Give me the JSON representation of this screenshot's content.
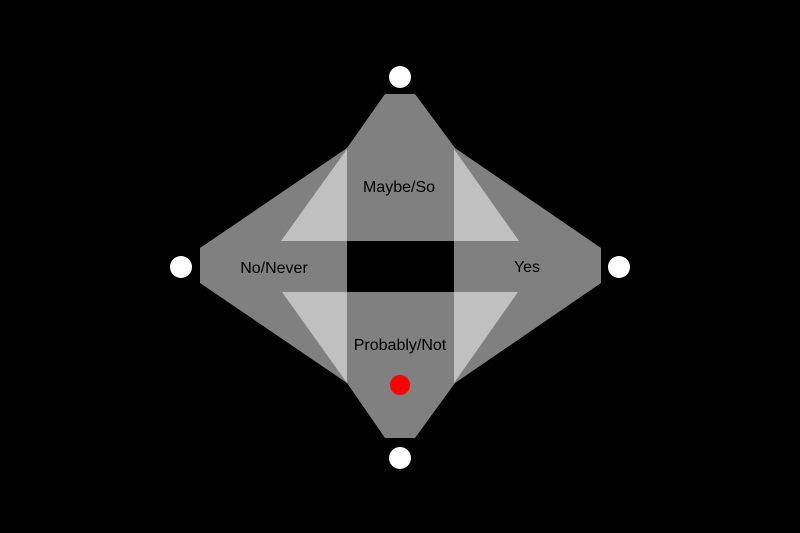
{
  "background_color": "#000000",
  "colors": {
    "band_fill": "#808080",
    "triangle_fill": "#c0c0c0",
    "center_fill": "#000000",
    "endpoint_fill": "#ffffff",
    "marker_fill": "#ff0000",
    "label_color": "#000000"
  },
  "labels": {
    "top": "Maybe/So",
    "left": "No/Never",
    "right": "Yes",
    "bottom": "Probably/Not"
  },
  "endpoints": [
    "top",
    "right",
    "bottom",
    "left"
  ],
  "marker": {
    "region": "bottom",
    "color": "#ff0000"
  }
}
